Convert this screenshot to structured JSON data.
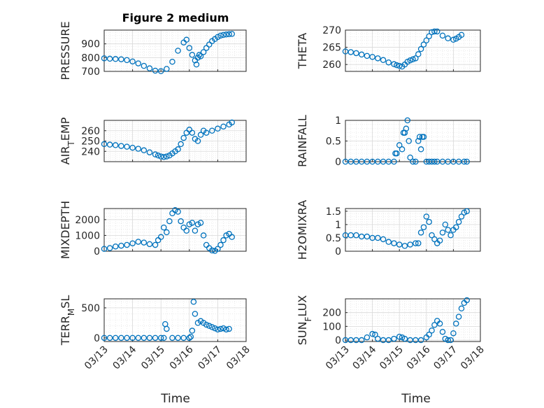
{
  "figure": {
    "title": "Figure 2 medium",
    "xlabel": "Time",
    "marker_color": "#0072BD",
    "x_ticks": [
      "03/13",
      "03/14",
      "03/15",
      "03/16",
      "03/17",
      "03/18"
    ]
  },
  "chart_data": [
    {
      "type": "scatter",
      "ylabel": "PRESSURE",
      "xlim": [
        0,
        5
      ],
      "ylim": [
        700,
        1000
      ],
      "yticks": [
        700,
        800,
        900
      ],
      "grid": true,
      "minor_grid": true,
      "x": [
        0.0,
        0.2,
        0.4,
        0.6,
        0.8,
        1.0,
        1.2,
        1.4,
        1.6,
        1.8,
        2.0,
        2.2,
        2.4,
        2.6,
        2.8,
        2.9,
        3.0,
        3.1,
        3.2,
        3.25,
        3.3,
        3.35,
        3.4,
        3.5,
        3.6,
        3.7,
        3.8,
        3.9,
        4.0,
        4.1,
        4.2,
        4.3,
        4.4,
        4.5
      ],
      "y": [
        795,
        792,
        790,
        788,
        782,
        772,
        758,
        740,
        722,
        705,
        702,
        718,
        770,
        850,
        910,
        930,
        870,
        820,
        780,
        750,
        800,
        820,
        810,
        840,
        870,
        895,
        920,
        935,
        950,
        960,
        965,
        968,
        970,
        972
      ]
    },
    {
      "type": "scatter",
      "ylabel": "THETA",
      "xlim": [
        0,
        5
      ],
      "ylim": [
        258,
        270
      ],
      "yticks": [
        260,
        265,
        270
      ],
      "grid": true,
      "minor_grid": true,
      "x": [
        0.0,
        0.2,
        0.4,
        0.6,
        0.8,
        1.0,
        1.2,
        1.4,
        1.6,
        1.8,
        1.9,
        2.0,
        2.1,
        2.2,
        2.3,
        2.4,
        2.5,
        2.6,
        2.7,
        2.8,
        2.9,
        3.0,
        3.1,
        3.2,
        3.3,
        3.4,
        3.6,
        3.8,
        4.0,
        4.1,
        4.2,
        4.3
      ],
      "y": [
        263.8,
        263.6,
        263.3,
        262.9,
        262.5,
        262.2,
        261.8,
        261.3,
        260.6,
        260.1,
        259.8,
        259.6,
        259.4,
        260.0,
        260.8,
        261.2,
        261.5,
        261.8,
        263.0,
        264.5,
        265.8,
        267.0,
        268.2,
        269.4,
        269.6,
        269.6,
        268.4,
        267.6,
        267.2,
        267.5,
        268.0,
        268.6
      ]
    },
    {
      "type": "scatter",
      "ylabel": "AIR_TEMP",
      "ylabel_main": "AIR",
      "ylabel_sub": "T",
      "ylabel_tail": "EMP",
      "xlim": [
        0,
        5
      ],
      "ylim": [
        230,
        270
      ],
      "yticks": [
        240,
        250,
        260
      ],
      "grid": true,
      "minor_grid": true,
      "x": [
        0.0,
        0.2,
        0.4,
        0.6,
        0.8,
        1.0,
        1.2,
        1.4,
        1.6,
        1.8,
        1.9,
        2.0,
        2.1,
        2.2,
        2.3,
        2.4,
        2.5,
        2.6,
        2.7,
        2.8,
        2.9,
        3.0,
        3.1,
        3.2,
        3.3,
        3.4,
        3.5,
        3.6,
        3.8,
        4.0,
        4.2,
        4.4,
        4.5
      ],
      "y": [
        247,
        246.5,
        246,
        245.2,
        244.5,
        243.5,
        242.5,
        241,
        239,
        237,
        236,
        235,
        234.5,
        235,
        236,
        238,
        240,
        242,
        247,
        253,
        258,
        261,
        258,
        252,
        250,
        256,
        260,
        258,
        260,
        262,
        264,
        266,
        268
      ]
    },
    {
      "type": "scatter",
      "ylabel": "RAINFALL",
      "xlim": [
        0,
        5
      ],
      "ylim": [
        0,
        1
      ],
      "yticks": [
        0,
        0.5,
        1
      ],
      "grid": true,
      "minor_grid": true,
      "x": [
        0.0,
        0.2,
        0.4,
        0.6,
        0.8,
        1.0,
        1.2,
        1.4,
        1.6,
        1.8,
        1.85,
        1.9,
        2.0,
        2.1,
        2.15,
        2.2,
        2.25,
        2.3,
        2.35,
        2.4,
        2.5,
        2.6,
        2.7,
        2.75,
        2.8,
        2.85,
        2.9,
        3.0,
        3.1,
        3.2,
        3.3,
        3.4,
        3.6,
        3.8,
        4.0,
        4.2,
        4.4,
        4.5
      ],
      "y": [
        0,
        0,
        0,
        0,
        0,
        0,
        0,
        0,
        0,
        0,
        0.2,
        0.2,
        0.4,
        0.3,
        0.7,
        0.7,
        0.8,
        1.0,
        0.5,
        0.1,
        0,
        0,
        0.5,
        0.6,
        0.3,
        0.6,
        0.6,
        0,
        0,
        0,
        0,
        0,
        0,
        0,
        0,
        0,
        0,
        0
      ]
    },
    {
      "type": "scatter",
      "ylabel": "MIXDEPTH",
      "xlim": [
        0,
        5
      ],
      "ylim": [
        0,
        2700
      ],
      "yticks": [
        0,
        1000,
        2000
      ],
      "grid": true,
      "minor_grid": true,
      "x": [
        0.0,
        0.2,
        0.4,
        0.6,
        0.8,
        1.0,
        1.2,
        1.4,
        1.6,
        1.8,
        1.9,
        2.0,
        2.1,
        2.2,
        2.3,
        2.4,
        2.5,
        2.6,
        2.7,
        2.8,
        2.9,
        3.0,
        3.1,
        3.2,
        3.3,
        3.4,
        3.5,
        3.6,
        3.7,
        3.8,
        3.9,
        4.0,
        4.1,
        4.2,
        4.3,
        4.4,
        4.5
      ],
      "y": [
        150,
        200,
        300,
        350,
        400,
        500,
        600,
        550,
        450,
        400,
        700,
        900,
        1500,
        1200,
        1900,
        2400,
        2600,
        2500,
        1900,
        1500,
        1300,
        1700,
        1800,
        1300,
        1700,
        1800,
        1000,
        400,
        200,
        50,
        20,
        150,
        400,
        700,
        1000,
        1100,
        900
      ]
    },
    {
      "type": "scatter",
      "ylabel": "H2OMIXRA",
      "xlim": [
        0,
        5
      ],
      "ylim": [
        0,
        1.6
      ],
      "yticks": [
        0,
        0.5,
        1,
        1.5
      ],
      "grid": true,
      "minor_grid": true,
      "x": [
        0.0,
        0.2,
        0.4,
        0.6,
        0.8,
        1.0,
        1.2,
        1.4,
        1.6,
        1.8,
        2.0,
        2.2,
        2.4,
        2.6,
        2.7,
        2.8,
        2.9,
        3.0,
        3.1,
        3.2,
        3.3,
        3.4,
        3.5,
        3.6,
        3.7,
        3.8,
        3.9,
        4.0,
        4.1,
        4.2,
        4.3,
        4.4,
        4.5
      ],
      "y": [
        0.6,
        0.6,
        0.6,
        0.55,
        0.55,
        0.5,
        0.5,
        0.45,
        0.35,
        0.3,
        0.25,
        0.2,
        0.25,
        0.3,
        0.3,
        0.7,
        0.9,
        1.3,
        1.1,
        0.6,
        0.45,
        0.3,
        0.4,
        0.7,
        1.0,
        0.8,
        0.6,
        0.8,
        0.9,
        1.1,
        1.3,
        1.45,
        1.5
      ]
    },
    {
      "type": "scatter",
      "ylabel": "TERR_MSL",
      "ylabel_main": "TERR",
      "ylabel_sub": "M",
      "ylabel_tail": "SL",
      "xlim": [
        0,
        5
      ],
      "ylim": [
        -60,
        650
      ],
      "yticks": [
        0,
        500
      ],
      "grid": true,
      "minor_grid": true,
      "x": [
        0.0,
        0.2,
        0.4,
        0.6,
        0.8,
        1.0,
        1.2,
        1.4,
        1.6,
        1.8,
        2.0,
        2.1,
        2.15,
        2.2,
        2.4,
        2.6,
        2.8,
        3.0,
        3.05,
        3.1,
        3.15,
        3.2,
        3.3,
        3.4,
        3.5,
        3.6,
        3.7,
        3.8,
        3.9,
        4.0,
        4.1,
        4.2,
        4.3,
        4.4
      ],
      "y": [
        0,
        0,
        0,
        0,
        0,
        0,
        0,
        0,
        0,
        0,
        0,
        0,
        230,
        150,
        0,
        0,
        0,
        0,
        20,
        120,
        600,
        400,
        250,
        280,
        250,
        220,
        200,
        180,
        160,
        140,
        150,
        160,
        140,
        150
      ]
    },
    {
      "type": "scatter",
      "ylabel": "SUN_FLUX",
      "ylabel_main": "SUN",
      "ylabel_sub": "F",
      "ylabel_tail": "LUX",
      "xlim": [
        0,
        5
      ],
      "ylim": [
        -10,
        300
      ],
      "yticks": [
        0,
        100,
        200
      ],
      "grid": true,
      "minor_grid": true,
      "x": [
        0.0,
        0.2,
        0.4,
        0.6,
        0.8,
        1.0,
        1.1,
        1.2,
        1.4,
        1.6,
        1.8,
        2.0,
        2.1,
        2.2,
        2.4,
        2.6,
        2.8,
        3.0,
        3.1,
        3.2,
        3.3,
        3.4,
        3.5,
        3.6,
        3.7,
        3.8,
        3.9,
        4.0,
        4.1,
        4.2,
        4.3,
        4.4,
        4.5
      ],
      "y": [
        0,
        0,
        0,
        0,
        20,
        45,
        40,
        10,
        0,
        0,
        10,
        25,
        20,
        10,
        0,
        0,
        0,
        20,
        40,
        70,
        110,
        140,
        120,
        60,
        10,
        0,
        0,
        50,
        120,
        170,
        230,
        270,
        290
      ]
    }
  ]
}
